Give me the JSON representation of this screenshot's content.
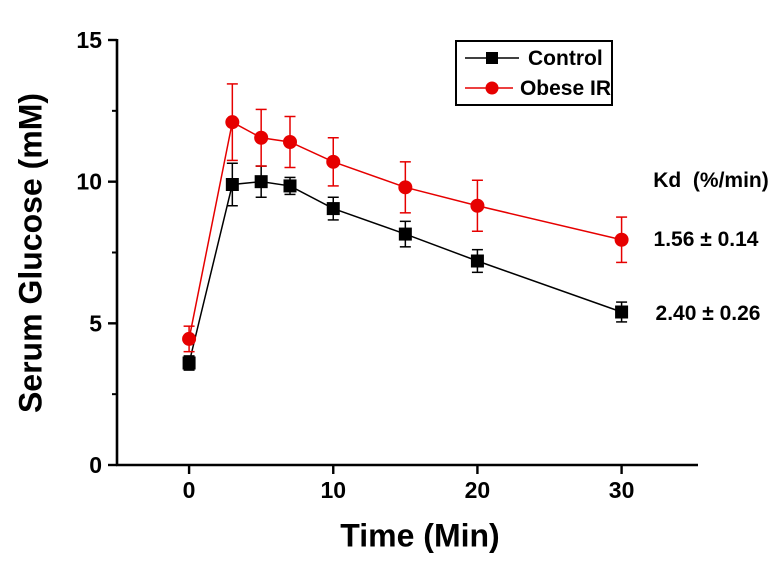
{
  "chart_data": {
    "type": "line",
    "title": "",
    "xlabel": "Time (Min)",
    "ylabel": "Serum Glucose (mM)",
    "x": [
      0,
      3,
      5,
      7,
      10,
      15,
      20,
      30
    ],
    "series": [
      {
        "name": "Control",
        "color": "#000000",
        "marker": "square",
        "values": [
          3.6,
          9.9,
          10.0,
          9.85,
          9.05,
          8.15,
          7.2,
          5.4
        ],
        "errors": [
          0.25,
          0.75,
          0.55,
          0.3,
          0.4,
          0.45,
          0.4,
          0.35
        ]
      },
      {
        "name": "Obese IR",
        "color": "#e60000",
        "marker": "circle",
        "values": [
          4.45,
          12.1,
          11.55,
          11.4,
          10.7,
          9.8,
          9.15,
          7.95
        ],
        "errors": [
          0.45,
          1.35,
          1.0,
          0.9,
          0.85,
          0.9,
          0.9,
          0.8
        ]
      }
    ],
    "xlim": [
      -5,
      35.3
    ],
    "ylim": [
      0,
      15
    ],
    "x_ticks": [
      0,
      10,
      20,
      30
    ],
    "y_ticks": [
      0,
      5,
      10,
      15
    ],
    "y_minor_ticks": [
      2.5,
      7.5,
      12.5
    ],
    "grid": false,
    "legend_position": "top-right"
  },
  "annotations": {
    "kd_header": "Kd  (%/min)",
    "values": [
      {
        "text": "1.56 ± 0.14",
        "series": "Obese IR"
      },
      {
        "text": "2.40 ± 0.26",
        "series": "Control"
      }
    ]
  }
}
